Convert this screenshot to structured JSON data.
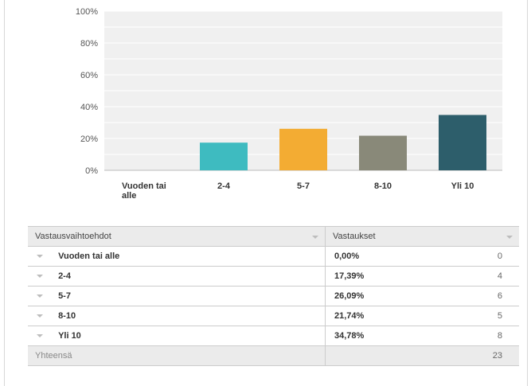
{
  "chart_data": {
    "type": "bar",
    "categories": [
      "Vuoden tai alle",
      "2-4",
      "5-7",
      "8-10",
      "Yli 10"
    ],
    "values": [
      0.0,
      17.39,
      26.09,
      21.74,
      34.78
    ],
    "ylim": [
      0,
      100
    ],
    "yticks": [
      "0%",
      "20%",
      "40%",
      "60%",
      "80%",
      "100%"
    ],
    "grid": true,
    "colors": [
      "#3ebbc0",
      "#3ebbc0",
      "#f3ac33",
      "#898979",
      "#2d5e6b"
    ],
    "plot_background": "#f0f0f0"
  },
  "table": {
    "header_option": "Vastausvaihtoehdot",
    "header_responses": "Vastaukset",
    "rows": [
      {
        "option": "Vuoden tai alle",
        "percent": "0,00%",
        "count": "0"
      },
      {
        "option": "2-4",
        "percent": "17,39%",
        "count": "4"
      },
      {
        "option": "5-7",
        "percent": "26,09%",
        "count": "6"
      },
      {
        "option": "8-10",
        "percent": "21,74%",
        "count": "5"
      },
      {
        "option": "Yli 10",
        "percent": "34,78%",
        "count": "8"
      }
    ],
    "total_label": "Yhteensä",
    "total_count": "23"
  }
}
